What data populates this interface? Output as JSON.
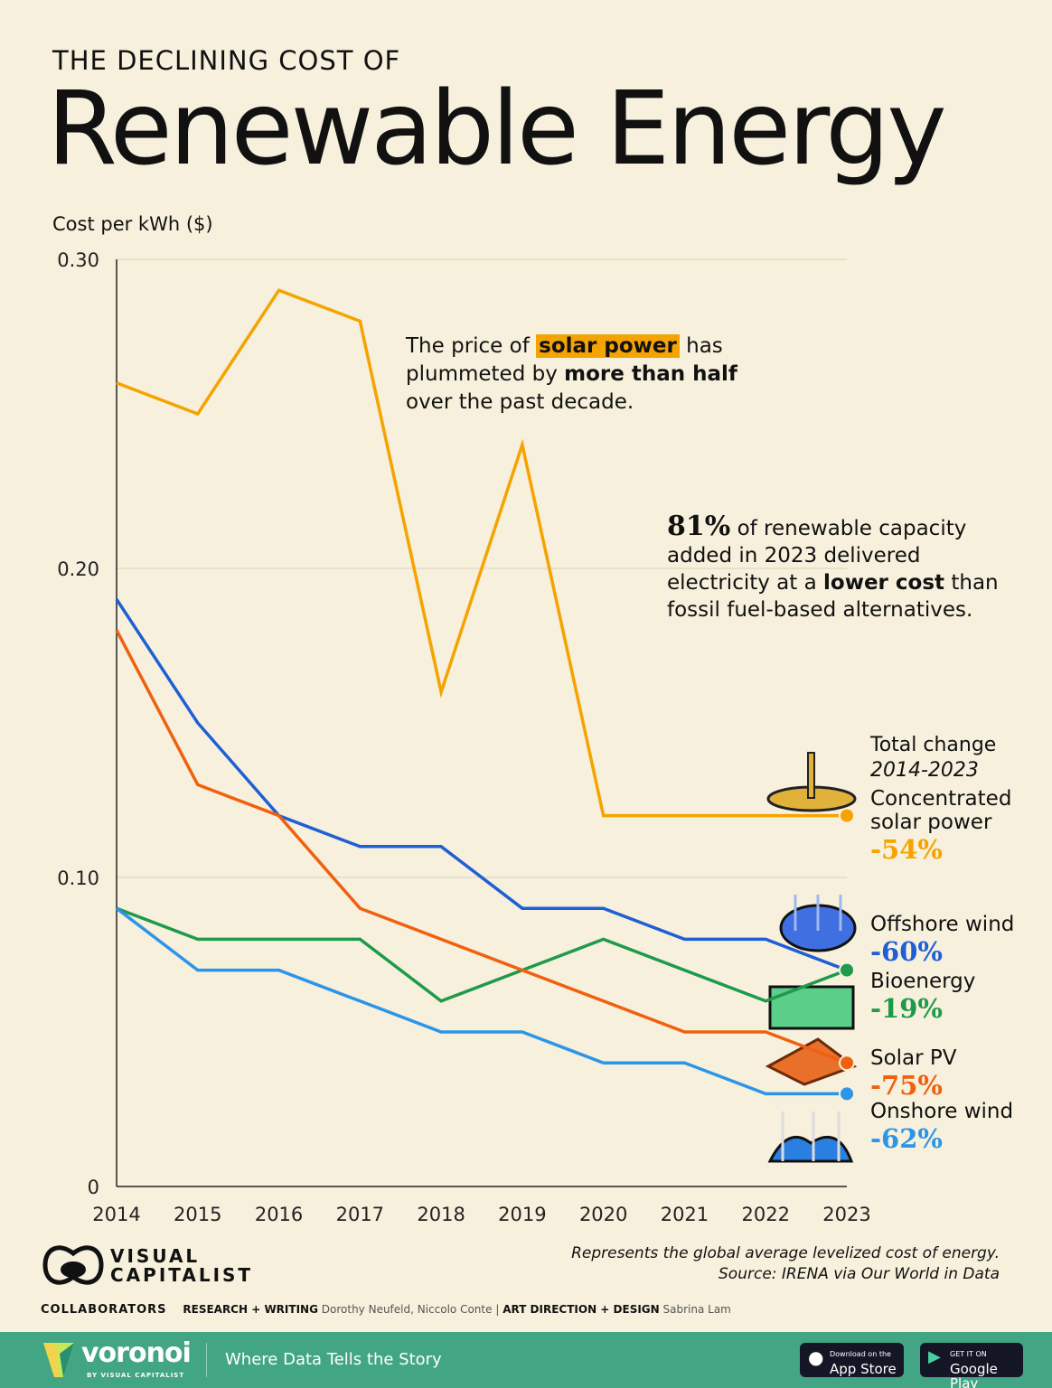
{
  "header": {
    "kicker": "THE DECLINING COST OF",
    "title": "Renewable Energy"
  },
  "chart_data": {
    "type": "line",
    "ylabel": "Cost per kWh ($)",
    "ylim": [
      0,
      0.3
    ],
    "yticks": [
      "0",
      "0.10",
      "0.20",
      "0.30"
    ],
    "yticks_values": [
      0,
      0.1,
      0.2,
      0.3
    ],
    "x": [
      2014,
      2015,
      2016,
      2017,
      2018,
      2019,
      2020,
      2021,
      2022,
      2023
    ],
    "grid": true,
    "series": [
      {
        "name": "Concentrated solar power",
        "color": "#f5a300",
        "change": "-54%",
        "values": [
          0.26,
          0.25,
          0.29,
          0.28,
          0.16,
          0.24,
          0.12,
          0.12,
          0.12,
          0.12
        ]
      },
      {
        "name": "Offshore wind",
        "color": "#1f5fd6",
        "change": "-60%",
        "values": [
          0.19,
          0.15,
          0.12,
          0.11,
          0.11,
          0.09,
          0.09,
          0.08,
          0.08,
          0.07
        ]
      },
      {
        "name": "Bioenergy",
        "color": "#1e9a4a",
        "change": "-19%",
        "values": [
          0.09,
          0.08,
          0.08,
          0.08,
          0.06,
          0.07,
          0.08,
          0.07,
          0.06,
          0.07
        ]
      },
      {
        "name": "Solar PV",
        "color": "#f0600f",
        "change": "-75%",
        "values": [
          0.18,
          0.13,
          0.12,
          0.09,
          0.08,
          0.07,
          0.06,
          0.05,
          0.05,
          0.04
        ]
      },
      {
        "name": "Onshore wind",
        "color": "#2b95e8",
        "change": "-62%",
        "values": [
          0.09,
          0.07,
          0.07,
          0.06,
          0.05,
          0.05,
          0.04,
          0.04,
          0.03,
          0.03
        ]
      }
    ],
    "legend_title": "Total change",
    "legend_subtitle": "2014-2023"
  },
  "annotations": {
    "solar": {
      "a": "The price of ",
      "hl": "solar power",
      "b": " has",
      "c": "plummeted by ",
      "bold": "more than half",
      "d": "over the past decade."
    },
    "capacity": {
      "big": "81%",
      "a": " of renewable capacity",
      "b": "added in 2023 delivered",
      "c": "electricity at a ",
      "bold": "lower cost",
      "d": " than",
      "e": "fossil fuel-based alternatives."
    }
  },
  "footnote": {
    "line1": "Represents the global average levelized cost of energy.",
    "line2": "Source: IRENA via Our World in Data"
  },
  "brand": {
    "line1": "VISUAL",
    "line2": "CAPITALIST"
  },
  "collaborators": {
    "label": "COLLABORATORS",
    "research_label": "RESEARCH + WRITING",
    "research": "Dorothy Neufeld, Niccolo Conte",
    "sep": "|",
    "design_label": "ART DIRECTION + DESIGN",
    "design": "Sabrina Lam"
  },
  "footer": {
    "brand": "voronoi",
    "brand_sub": "BY VISUAL CAPITALIST",
    "tagline": "Where Data Tells the Story",
    "appstore_small": "Download on the",
    "appstore": "App Store",
    "google_small": "GET IT ON",
    "google": "Google Play",
    "color": "#42a583"
  }
}
